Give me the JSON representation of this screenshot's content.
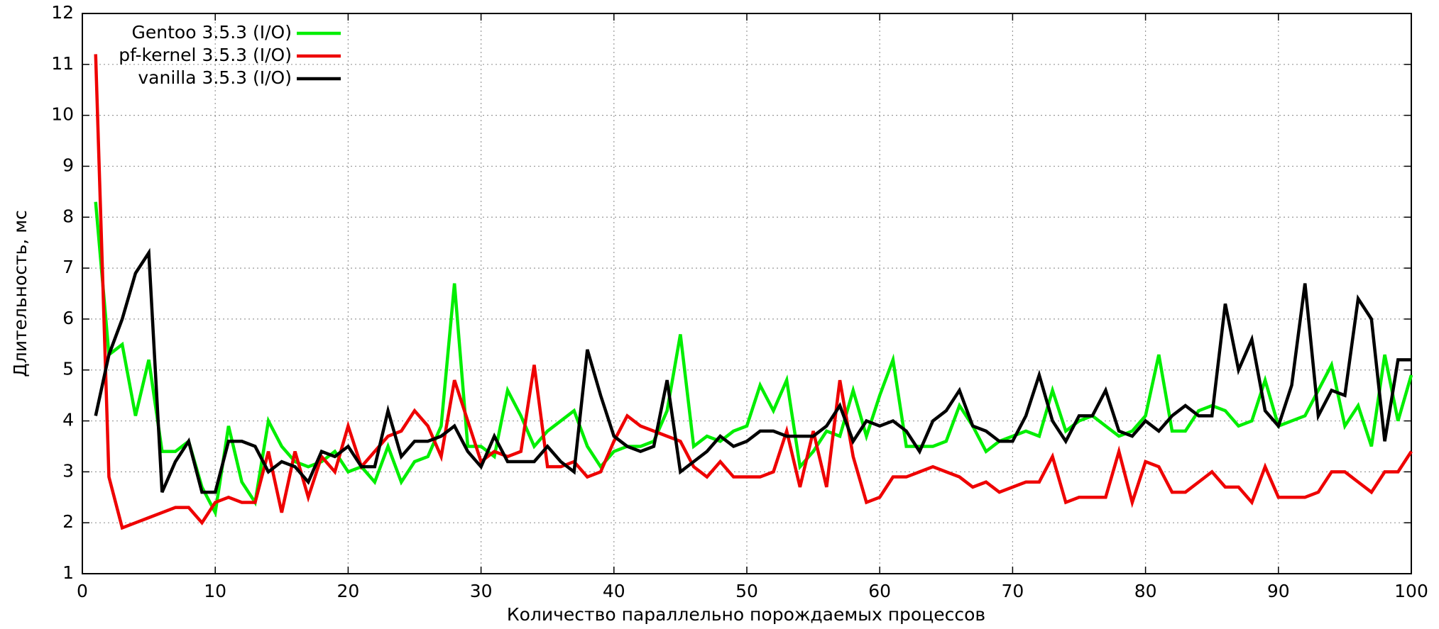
{
  "chart_data": {
    "type": "line",
    "xlabel": "Количество параллельно порождаемых процессов",
    "ylabel": "Длительность, мс",
    "x": [
      1,
      2,
      3,
      4,
      5,
      6,
      7,
      8,
      9,
      10,
      11,
      12,
      13,
      14,
      15,
      16,
      17,
      18,
      19,
      20,
      21,
      22,
      23,
      24,
      25,
      26,
      27,
      28,
      29,
      30,
      31,
      32,
      33,
      34,
      35,
      36,
      37,
      38,
      39,
      40,
      41,
      42,
      43,
      44,
      45,
      46,
      47,
      48,
      49,
      50,
      51,
      52,
      53,
      54,
      55,
      56,
      57,
      58,
      59,
      60,
      61,
      62,
      63,
      64,
      65,
      66,
      67,
      68,
      69,
      70,
      71,
      72,
      73,
      74,
      75,
      76,
      77,
      78,
      79,
      80,
      81,
      82,
      83,
      84,
      85,
      86,
      87,
      88,
      89,
      90,
      91,
      92,
      93,
      94,
      95,
      96,
      97,
      98,
      99,
      100
    ],
    "series": [
      {
        "name": "Gentoo 3.5.3 (I/O)",
        "color": "#00ee00",
        "values": [
          8.3,
          5.3,
          5.5,
          4.1,
          5.2,
          3.4,
          3.4,
          3.6,
          2.7,
          2.2,
          3.9,
          2.8,
          2.4,
          4.0,
          3.5,
          3.2,
          3.1,
          3.2,
          3.4,
          3.0,
          3.1,
          2.8,
          3.5,
          2.8,
          3.2,
          3.3,
          3.9,
          6.7,
          3.5,
          3.5,
          3.3,
          4.6,
          4.1,
          3.5,
          3.8,
          4.0,
          4.2,
          3.5,
          3.1,
          3.4,
          3.5,
          3.5,
          3.6,
          4.2,
          5.7,
          3.5,
          3.7,
          3.6,
          3.8,
          3.9,
          4.7,
          4.2,
          4.8,
          3.1,
          3.4,
          3.8,
          3.7,
          4.6,
          3.7,
          4.5,
          5.2,
          3.5,
          3.5,
          3.5,
          3.6,
          4.3,
          3.9,
          3.4,
          3.6,
          3.7,
          3.8,
          3.7,
          4.6,
          3.8,
          4.0,
          4.1,
          3.9,
          3.7,
          3.8,
          4.1,
          5.3,
          3.8,
          3.8,
          4.2,
          4.3,
          4.2,
          3.9,
          4.0,
          4.8,
          3.9,
          4.0,
          4.1,
          4.6,
          5.1,
          3.9,
          4.3,
          3.5,
          5.3,
          4.0,
          4.9
        ]
      },
      {
        "name": "pf-kernel 3.5.3 (I/O)",
        "color": "#ee0000",
        "values": [
          11.2,
          2.9,
          1.9,
          2.0,
          2.1,
          2.2,
          2.3,
          2.3,
          2.0,
          2.4,
          2.5,
          2.4,
          2.4,
          3.4,
          2.2,
          3.4,
          2.5,
          3.3,
          3.0,
          3.9,
          3.1,
          3.4,
          3.7,
          3.8,
          4.2,
          3.9,
          3.3,
          4.8,
          4.0,
          3.2,
          3.4,
          3.3,
          3.4,
          5.1,
          3.1,
          3.1,
          3.2,
          2.9,
          3.0,
          3.6,
          4.1,
          3.9,
          3.8,
          3.7,
          3.6,
          3.1,
          2.9,
          3.2,
          2.9,
          2.9,
          2.9,
          3.0,
          3.8,
          2.7,
          3.8,
          2.7,
          4.8,
          3.3,
          2.4,
          2.5,
          2.9,
          2.9,
          3.0,
          3.1,
          3.0,
          2.9,
          2.7,
          2.8,
          2.6,
          2.7,
          2.8,
          2.8,
          3.3,
          2.4,
          2.5,
          2.5,
          2.5,
          3.4,
          2.4,
          3.2,
          3.1,
          2.6,
          2.6,
          2.8,
          3.0,
          2.7,
          2.7,
          2.4,
          3.1,
          2.5,
          2.5,
          2.5,
          2.6,
          3.0,
          3.0,
          2.8,
          2.6,
          3.0,
          3.0,
          3.4
        ]
      },
      {
        "name": "vanilla 3.5.3 (I/O)",
        "color": "#000000",
        "values": [
          4.1,
          5.3,
          6.0,
          6.9,
          7.3,
          2.6,
          3.2,
          3.6,
          2.6,
          2.6,
          3.6,
          3.6,
          3.5,
          3.0,
          3.2,
          3.1,
          2.8,
          3.4,
          3.3,
          3.5,
          3.1,
          3.1,
          4.2,
          3.3,
          3.6,
          3.6,
          3.7,
          3.9,
          3.4,
          3.1,
          3.7,
          3.2,
          3.2,
          3.2,
          3.5,
          3.2,
          3.0,
          5.4,
          4.5,
          3.7,
          3.5,
          3.4,
          3.5,
          4.8,
          3.0,
          3.2,
          3.4,
          3.7,
          3.5,
          3.6,
          3.8,
          3.8,
          3.7,
          3.7,
          3.7,
          3.9,
          4.3,
          3.6,
          4.0,
          3.9,
          4.0,
          3.8,
          3.4,
          4.0,
          4.2,
          4.6,
          3.9,
          3.8,
          3.6,
          3.6,
          4.1,
          4.9,
          4.0,
          3.6,
          4.1,
          4.1,
          4.6,
          3.8,
          3.7,
          4.0,
          3.8,
          4.1,
          4.3,
          4.1,
          4.1,
          6.3,
          5.0,
          5.6,
          4.2,
          3.9,
          4.7,
          6.7,
          4.1,
          4.6,
          4.5,
          6.4,
          6.0,
          3.6,
          5.2,
          5.2
        ]
      }
    ],
    "xlim": [
      0,
      100
    ],
    "xticks": [
      0,
      10,
      20,
      30,
      40,
      50,
      60,
      70,
      80,
      90,
      100
    ],
    "ylim": [
      1,
      12
    ],
    "yticks": [
      1,
      2,
      3,
      4,
      5,
      6,
      7,
      8,
      9,
      10,
      11,
      12
    ],
    "grid": true,
    "legend": "upper-left"
  }
}
